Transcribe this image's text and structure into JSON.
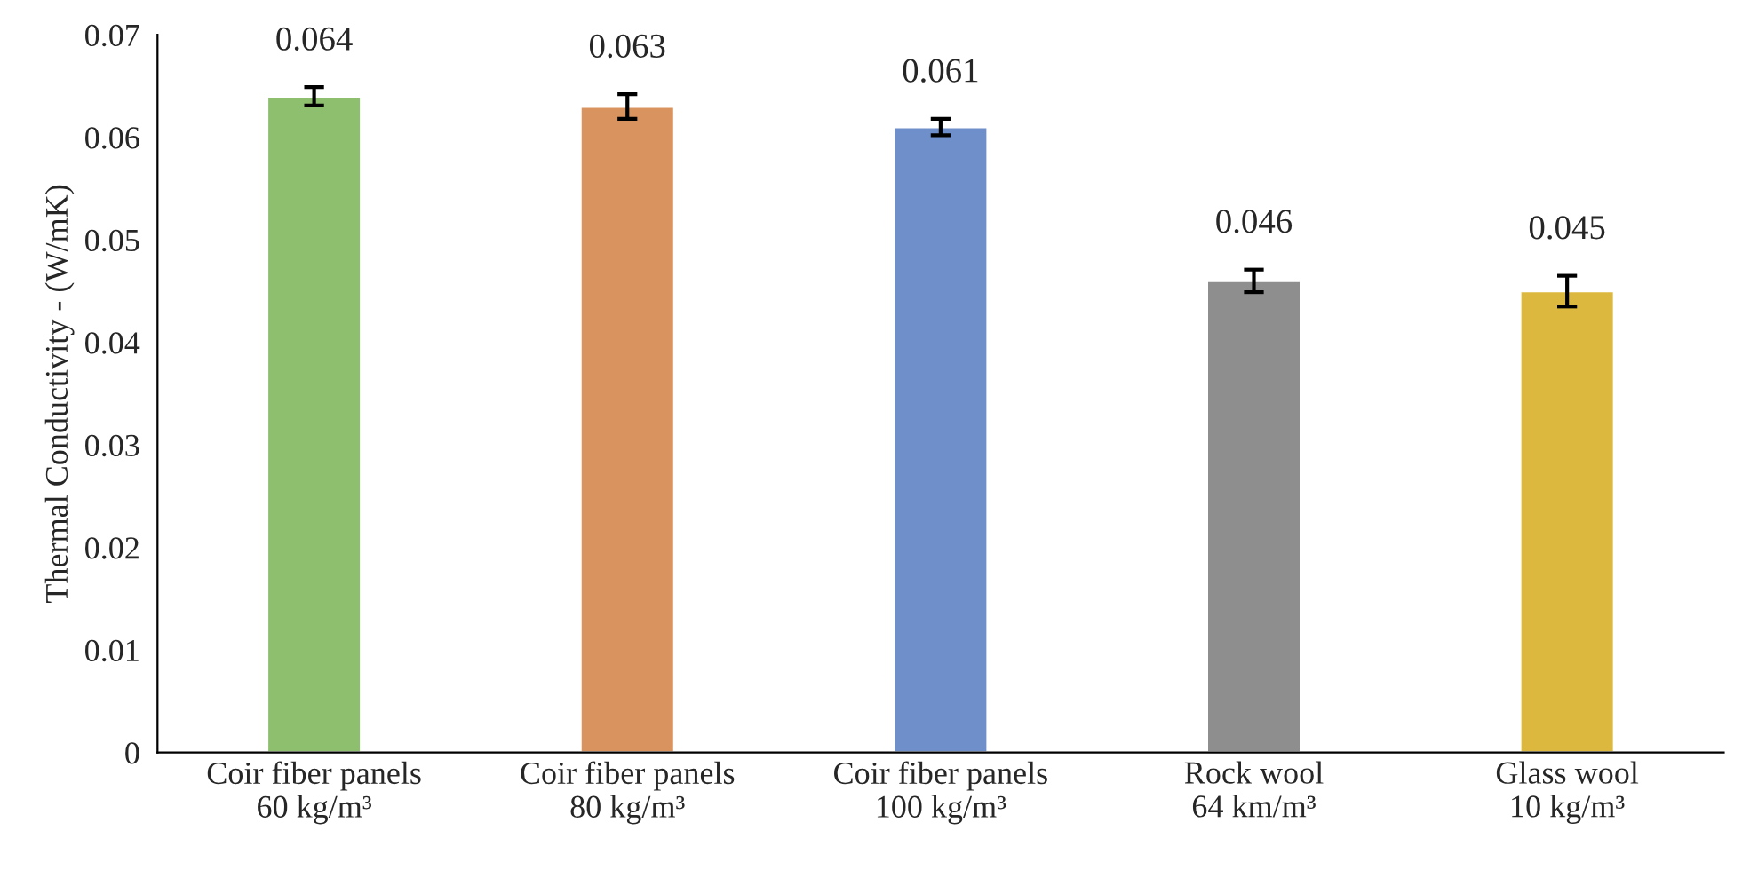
{
  "chart_data": {
    "type": "bar",
    "ylabel": "Thermal Conductivity - (W/mK)",
    "categories": [
      "Coir fiber panels\n60 kg/m³",
      "Coir fiber panels\n80 kg/m³",
      "Coir fiber panels\n100 kg/m³",
      "Rock wool\n64 km/m³",
      "Glass wool\n10 kg/m³"
    ],
    "values": [
      0.064,
      0.063,
      0.061,
      0.046,
      0.045
    ],
    "errors": [
      0.0009,
      0.0012,
      0.0008,
      0.0011,
      0.0015
    ],
    "colors": [
      "#8dbf6e",
      "#d9935f",
      "#6e8fc9",
      "#8e8e8e",
      "#dcb83e"
    ],
    "ylim": [
      0,
      0.07
    ],
    "yticks": [
      {
        "value": 0,
        "label": "0"
      },
      0.01,
      0.02,
      0.03,
      0.04,
      0.05,
      0.06,
      0.07
    ],
    "data_labels": true,
    "grid": false,
    "legend": false
  }
}
